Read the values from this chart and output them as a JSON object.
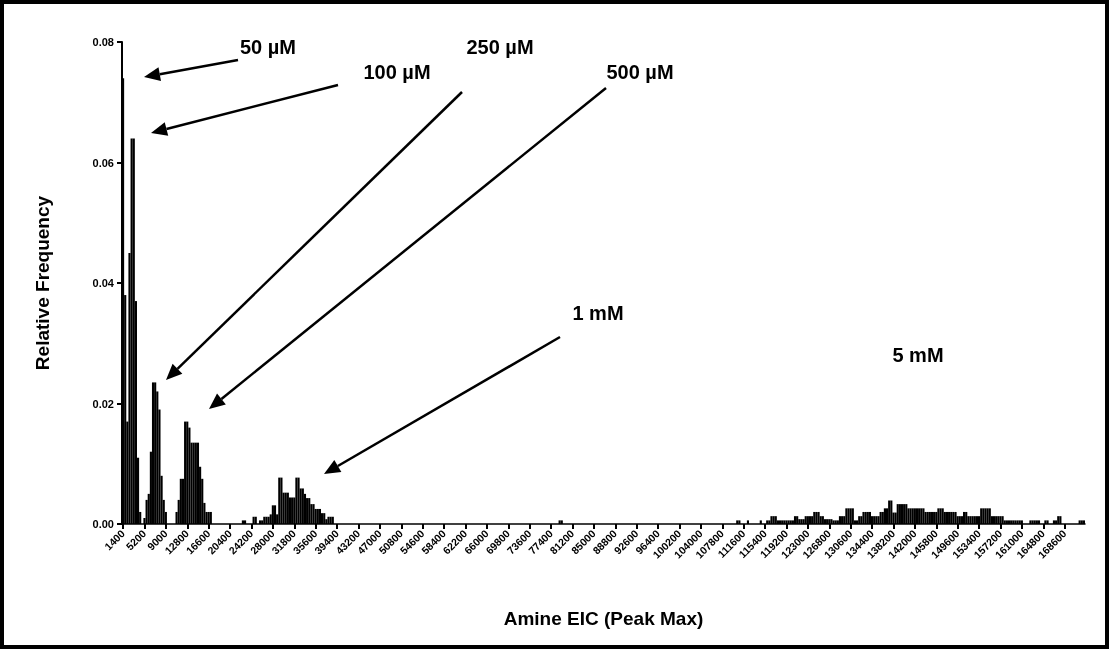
{
  "chart_data": {
    "type": "histogram",
    "xlabel": "Amine EIC (Peak Max)",
    "ylabel": "Relative Frequency",
    "color": "#000000",
    "xlim": [
      1210,
      172210
    ],
    "ylim": [
      0,
      0.08
    ],
    "xticks": [
      1400,
      5200,
      9000,
      12800,
      16600,
      20400,
      24200,
      28000,
      31800,
      35600,
      39400,
      43200,
      47000,
      50800,
      54600,
      58400,
      62200,
      66000,
      69800,
      73600,
      77400,
      81200,
      85000,
      88800,
      92600,
      96400,
      100200,
      104000,
      107800,
      111600,
      115400,
      119200,
      123000,
      126800,
      130600,
      134400,
      138200,
      142000,
      145800,
      149600,
      153400,
      157200,
      161000,
      164800,
      168600
    ],
    "yticks": [
      {
        "value": 0,
        "label": "0.00"
      },
      {
        "value": 0.02,
        "label": "0.02"
      },
      {
        "value": 0.04,
        "label": "0.04"
      },
      {
        "value": 0.06,
        "label": "0.06"
      },
      {
        "value": 0.08,
        "label": "0.08"
      }
    ],
    "bins": [
      1210,
      1590,
      1970,
      2350,
      2730,
      3110,
      3490,
      3870,
      4250,
      4630,
      5010,
      5390,
      5770,
      6150,
      6530,
      6910,
      7290,
      7670,
      8050,
      8430,
      8810,
      9190,
      10710,
      11090,
      11470,
      11850,
      12230,
      12610,
      12990,
      13370,
      13750,
      14130,
      14510,
      14890,
      15270,
      15650,
      16030,
      16410,
      16790,
      17170,
      22490,
      22870,
      23250,
      24390,
      24770,
      25150,
      25530,
      25910,
      26290,
      26670,
      27050,
      27430,
      27810,
      28190,
      28570,
      28950,
      29330,
      29710,
      30090,
      30470,
      30850,
      31230,
      31610,
      31990,
      32370,
      32750,
      33130,
      33510,
      33890,
      34270,
      34650,
      35030,
      35410,
      35790,
      36170,
      36550,
      36930,
      37310,
      37690,
      38070,
      38450,
      38830,
      78730,
      79110,
      79490,
      110270,
      110650,
      111030,
      112170,
      112550,
      114450,
      114830,
      115590,
      115970,
      116350,
      116730,
      117110,
      117490,
      117870,
      118250,
      118630,
      119010,
      119390,
      119770,
      120150,
      120530,
      120910,
      121290,
      121670,
      122050,
      122430,
      122810,
      123190,
      123570,
      123950,
      124330,
      124710,
      125090,
      125470,
      125850,
      126230,
      126610,
      126990,
      127370,
      127750,
      128130,
      128510,
      128890,
      129270,
      129650,
      130030,
      130410,
      130790,
      131170,
      131550,
      131930,
      132310,
      132690,
      133070,
      133450,
      133830,
      134210,
      134590,
      134970,
      135350,
      135730,
      136110,
      136490,
      136870,
      137250,
      137630,
      138010,
      138390,
      138770,
      139150,
      139530,
      139910,
      140290,
      140670,
      141050,
      141430,
      141810,
      142190,
      142570,
      142950,
      143330,
      143710,
      144090,
      144470,
      144850,
      145230,
      145610,
      145990,
      146370,
      146750,
      147130,
      147510,
      147890,
      148270,
      148650,
      149030,
      149410,
      149790,
      150170,
      150550,
      150930,
      151310,
      151690,
      152070,
      152450,
      152830,
      153210,
      153590,
      153970,
      154350,
      154730,
      155110,
      155490,
      155870,
      156250,
      156630,
      157010,
      157390,
      157770,
      158150,
      158530,
      158910,
      159290,
      159670,
      160050,
      160430,
      160810,
      161190,
      162330,
      162710,
      163090,
      163470,
      163850,
      164230,
      164990,
      165370,
      165750,
      166510,
      166890,
      167270,
      167650,
      168030,
      171070,
      171450,
      171830,
      172210
    ],
    "values": [
      0.074,
      0.038,
      0.017,
      0.045,
      0.064,
      0.064,
      0.037,
      0.011,
      0.002,
      0,
      0.001,
      0.004,
      0.005,
      0.012,
      0.0235,
      0.0235,
      0.022,
      0.019,
      0.008,
      0.004,
      0.002,
      0,
      0.002,
      0.004,
      0.0075,
      0.0075,
      0.017,
      0.017,
      0.016,
      0.0135,
      0.0135,
      0.0135,
      0.0135,
      0.0095,
      0.0075,
      0.0035,
      0.002,
      0.002,
      0.002,
      0,
      0.0006,
      0.0006,
      0,
      0.0012,
      0.0012,
      0,
      0.0006,
      0.0006,
      0.0012,
      0.0012,
      0.0012,
      0.0016,
      0.0031,
      0.0031,
      0.0016,
      0.0077,
      0.0077,
      0.0052,
      0.0052,
      0.0052,
      0.0044,
      0.0044,
      0.0044,
      0.0077,
      0.0077,
      0.0059,
      0.0059,
      0.005,
      0.0043,
      0.0043,
      0.0033,
      0.0033,
      0.0025,
      0.0025,
      0.0025,
      0.0018,
      0.0018,
      0.0008,
      0.0012,
      0.0012,
      0.0012,
      0,
      0.0006,
      0.0006,
      0,
      0.0006,
      0.0006,
      0,
      0.0006,
      0,
      0.0006,
      0,
      0.0006,
      0.0006,
      0.0013,
      0.0013,
      0.0013,
      0.0006,
      0.0006,
      0.0006,
      0.0006,
      0.0006,
      0.0006,
      0.0006,
      0.0006,
      0.0013,
      0.0013,
      0.0008,
      0.0008,
      0.0008,
      0.0013,
      0.0013,
      0.0013,
      0.0013,
      0.002,
      0.002,
      0.002,
      0.0013,
      0.0013,
      0.0008,
      0.0008,
      0.0008,
      0.0008,
      0.0006,
      0.0006,
      0.0006,
      0.0013,
      0.0013,
      0.0013,
      0.0026,
      0.0026,
      0.0026,
      0.0026,
      0.0006,
      0.0006,
      0.0013,
      0.0013,
      0.002,
      0.002,
      0.002,
      0.002,
      0.0013,
      0.0013,
      0.0013,
      0.0013,
      0.002,
      0.002,
      0.0026,
      0.0026,
      0.0039,
      0.0039,
      0.0019,
      0.0019,
      0.0033,
      0.0033,
      0.0033,
      0.0033,
      0.0033,
      0.0026,
      0.0026,
      0.0026,
      0.0026,
      0.0026,
      0.0026,
      0.0026,
      0.0026,
      0.002,
      0.002,
      0.002,
      0.002,
      0.002,
      0.002,
      0.0026,
      0.0026,
      0.0026,
      0.002,
      0.002,
      0.002,
      0.002,
      0.002,
      0.002,
      0.0013,
      0.0013,
      0.0013,
      0.002,
      0.002,
      0.0013,
      0.0013,
      0.0013,
      0.0013,
      0.0013,
      0.0013,
      0.0026,
      0.0026,
      0.0026,
      0.0026,
      0.0026,
      0.0013,
      0.0013,
      0.0013,
      0.0013,
      0.0013,
      0.0013,
      0.0006,
      0.0006,
      0.0006,
      0.0006,
      0.0006,
      0.0006,
      0.0006,
      0.0006,
      0.0006,
      0,
      0.0006,
      0.0006,
      0.0006,
      0.0006,
      0.0006,
      0,
      0.0006,
      0.0006,
      0,
      0.0006,
      0.0006,
      0.0013,
      0.0013,
      0,
      0.0006,
      0.0006,
      0.0006
    ],
    "annotations": [
      "50 µM",
      "100 µM",
      "250 µM",
      "500 µM",
      "1 mM",
      "5 mM"
    ]
  }
}
